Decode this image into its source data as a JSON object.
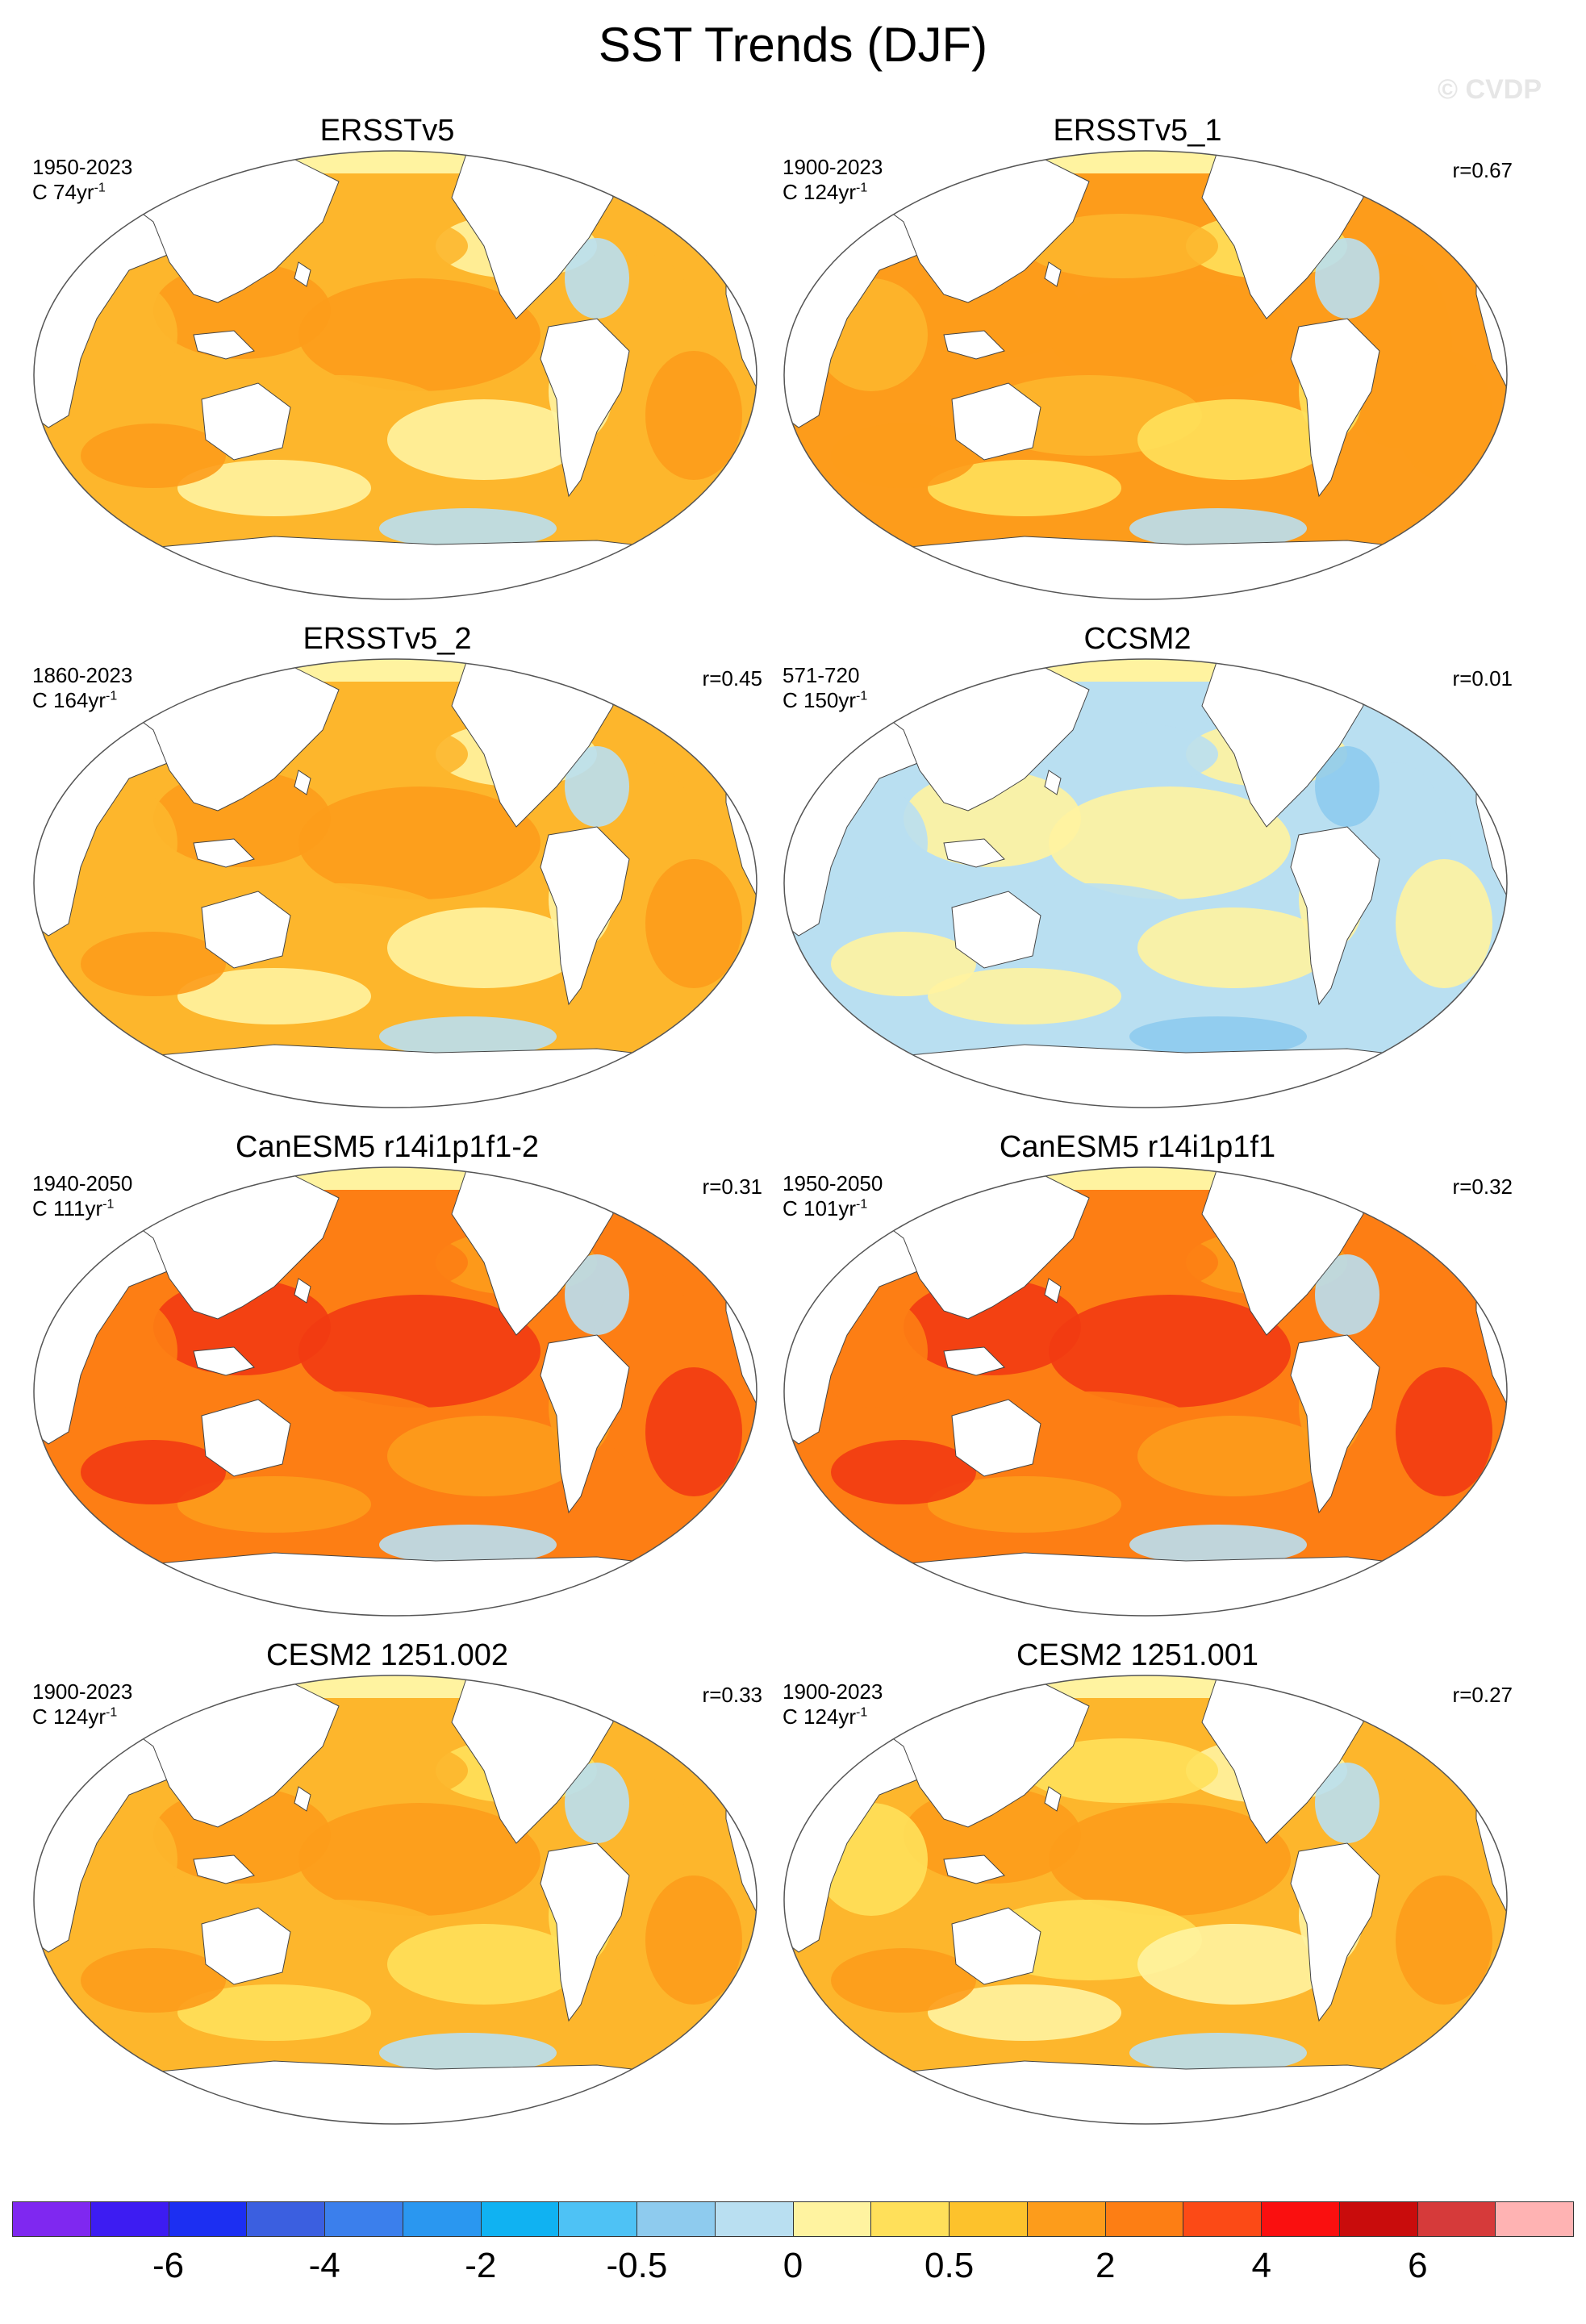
{
  "figure": {
    "title": "SST Trends (DJF)",
    "watermark": "© CVDP"
  },
  "panels": [
    {
      "title": "ERSSTv5",
      "period": "1950-2023",
      "units_prefix": "C 74yr",
      "units_exp": "-1",
      "corr": "",
      "palette": [
        "#fdb62c",
        "#fdb62c",
        "#fd9c1b",
        "#fff3a0",
        "#b9dff1"
      ]
    },
    {
      "title": "ERSSTv5_1",
      "period": "1900-2023",
      "units_prefix": "C 124yr",
      "units_exp": "-1",
      "corr": "r=0.67",
      "palette": [
        "#fd9c1b",
        "#fdb62c",
        "#fd9c1b",
        "#ffe05a",
        "#b9dff1"
      ]
    },
    {
      "title": "ERSSTv5_2",
      "period": "1860-2023",
      "units_prefix": "C 164yr",
      "units_exp": "-1",
      "corr": "r=0.45",
      "palette": [
        "#fdb62c",
        "#fdb62c",
        "#fd9c1b",
        "#fff3a0",
        "#b9dff1"
      ]
    },
    {
      "title": "CCSM2",
      "period": "571-720",
      "units_prefix": "C 150yr",
      "units_exp": "-1",
      "corr": "r=0.01",
      "palette": [
        "#b9dff1",
        "#b9dff1",
        "#fff3a0",
        "#fff3a0",
        "#8ecbee"
      ]
    },
    {
      "title": "CanESM5 r14i1p1f1-2",
      "period": "1940-2050",
      "units_prefix": "C 111yr",
      "units_exp": "-1",
      "corr": "r=0.31",
      "palette": [
        "#fd7e14",
        "#fd7e14",
        "#f23b12",
        "#fd9c1b",
        "#b9dff1"
      ]
    },
    {
      "title": "CanESM5 r14i1p1f1",
      "period": "1950-2050",
      "units_prefix": "C 101yr",
      "units_exp": "-1",
      "corr": "r=0.32",
      "palette": [
        "#fd7e14",
        "#fd7e14",
        "#f23b12",
        "#fd9c1b",
        "#b9dff1"
      ]
    },
    {
      "title": "CESM2 1251.002",
      "period": "1900-2023",
      "units_prefix": "C 124yr",
      "units_exp": "-1",
      "corr": "r=0.33",
      "palette": [
        "#fdb62c",
        "#fdb62c",
        "#fd9c1b",
        "#ffe05a",
        "#b9dff1"
      ]
    },
    {
      "title": "CESM2 1251.001",
      "period": "1900-2023",
      "units_prefix": "C 124yr",
      "units_exp": "-1",
      "corr": "r=0.27",
      "palette": [
        "#fdb62c",
        "#ffe05a",
        "#fd9c1b",
        "#fff3a0",
        "#b9dff1"
      ]
    }
  ],
  "colorbar": {
    "colors": [
      "#7f28f0",
      "#3d1cf2",
      "#1c2ff2",
      "#3b5fe0",
      "#3b7fec",
      "#2a97f0",
      "#10b2f2",
      "#4ec2f5",
      "#8ecbee",
      "#b9dff1",
      "#fff3a0",
      "#ffe05a",
      "#fdc22c",
      "#fd9c1b",
      "#fd7e14",
      "#fc4a16",
      "#fa0f0f",
      "#c90c0c",
      "#d63a3a",
      "#ffb3b3"
    ],
    "labels": [
      "-6",
      "-4",
      "-2",
      "-0.5",
      "0",
      "0.5",
      "2",
      "4",
      "6"
    ],
    "label_boundaries": [
      2,
      4,
      6,
      8,
      10,
      12,
      14,
      16,
      18
    ]
  }
}
